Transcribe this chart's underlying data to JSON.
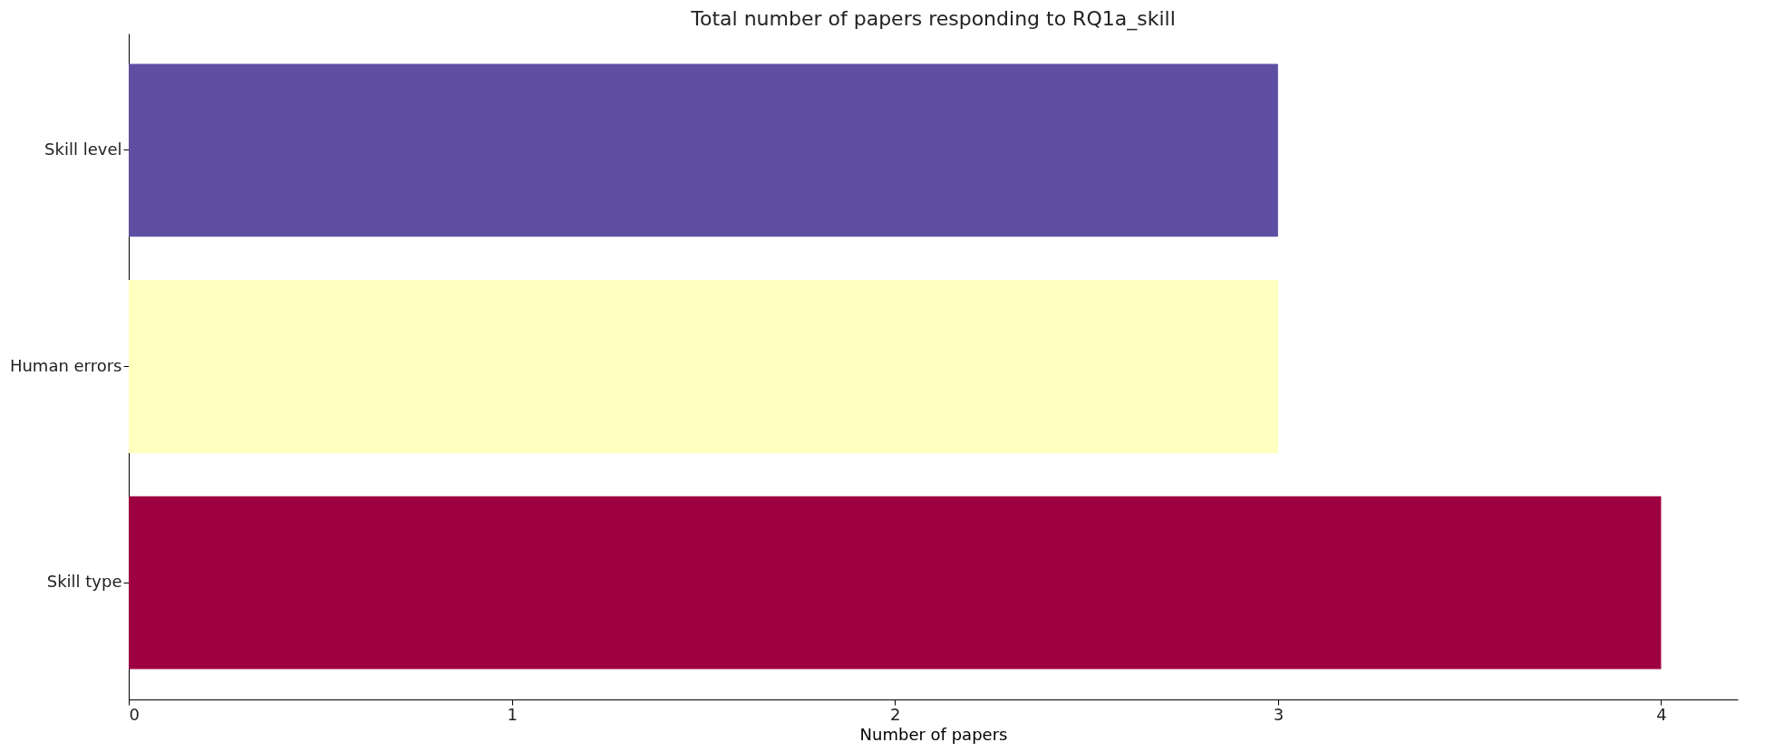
{
  "chart_data": {
    "type": "bar",
    "orientation": "horizontal",
    "title": "Total number of papers responding to RQ1a_skill",
    "xlabel": "Number of papers",
    "categories": [
      "Skill level",
      "Human errors",
      "Skill type"
    ],
    "values": [
      3,
      3,
      4
    ],
    "colors": [
      "#5e4fa2",
      "#ffffbf",
      "#9e0142"
    ],
    "xlim": [
      0,
      4.2
    ],
    "xticks": [
      0,
      1,
      2,
      3,
      4
    ],
    "grid": false
  }
}
